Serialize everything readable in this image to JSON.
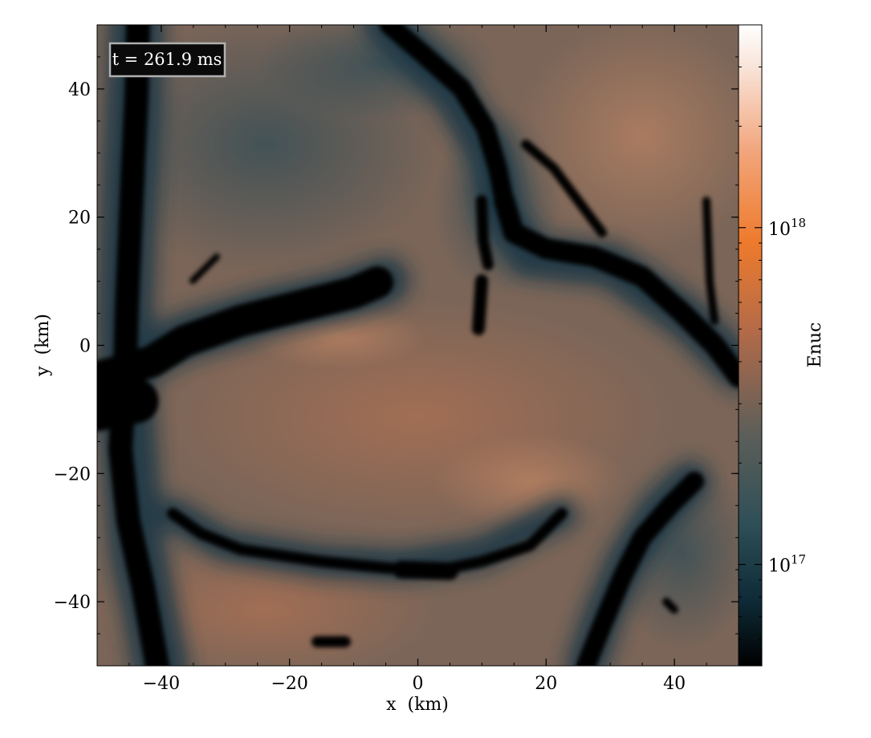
{
  "chart_data": {
    "type": "heatmap",
    "annotation": "t = 261.9 ms",
    "xlabel": "x  (km)",
    "ylabel": "y  (km)",
    "xlim": [
      -50,
      50
    ],
    "ylim": [
      -50,
      50
    ],
    "x_ticks": [
      -40,
      -20,
      0,
      20,
      40
    ],
    "y_ticks": [
      -40,
      -20,
      0,
      20,
      40
    ],
    "x_tick_labels": [
      "−40",
      "−20",
      "0",
      "20",
      "40"
    ],
    "y_tick_labels": [
      "−40",
      "−20",
      "0",
      "20",
      "40"
    ],
    "colorbar": {
      "label": "Enuc",
      "scale": "log",
      "range": [
        5e+16,
        4e+18
      ],
      "ticks": [
        1e+17,
        1e+18
      ],
      "tick_labels": [
        {
          "base": "10",
          "exp": "17"
        },
        {
          "base": "10",
          "exp": "18"
        }
      ],
      "colormap_stops": [
        "#000000",
        "#0d2a36",
        "#2e4f57",
        "#5c5e59",
        "#b26a49",
        "#ee7a2c",
        "#f2a47a",
        "#f8e2d6",
        "#ffffff"
      ]
    },
    "features": [
      {
        "name": "left vertical filament",
        "level": "low",
        "path": [
          [
            -43,
            50
          ],
          [
            -44,
            30
          ],
          [
            -45,
            10
          ],
          [
            -46,
            0
          ],
          [
            -45,
            -20
          ],
          [
            -43,
            -40
          ],
          [
            -40,
            -50
          ]
        ]
      },
      {
        "name": "upper bubble rim",
        "level": "low",
        "path": [
          [
            -46,
            -2
          ],
          [
            -35,
            0
          ],
          [
            -20,
            5
          ],
          [
            -10,
            8
          ],
          [
            -5,
            10
          ]
        ]
      },
      {
        "name": "right upper filament",
        "level": "low",
        "path": [
          [
            -5,
            50
          ],
          [
            5,
            40
          ],
          [
            12,
            30
          ],
          [
            15,
            20
          ],
          [
            20,
            10
          ],
          [
            35,
            5
          ],
          [
            45,
            0
          ],
          [
            50,
            -5
          ]
        ]
      },
      {
        "name": "lower bubble rim",
        "level": "low",
        "path": [
          [
            -38,
            -25
          ],
          [
            -30,
            -32
          ],
          [
            -15,
            -34
          ],
          [
            0,
            -35
          ],
          [
            10,
            -33
          ],
          [
            20,
            -27
          ]
        ]
      },
      {
        "name": "lower right filament",
        "level": "low",
        "path": [
          [
            45,
            -20
          ],
          [
            40,
            -25
          ],
          [
            35,
            -30
          ],
          [
            30,
            -40
          ],
          [
            25,
            -50
          ]
        ]
      },
      {
        "name": "bubble interior",
        "level": "high",
        "center": [
          0,
          -15
        ]
      },
      {
        "name": "upper right region",
        "level": "high",
        "center": [
          35,
          30
        ]
      }
    ]
  }
}
